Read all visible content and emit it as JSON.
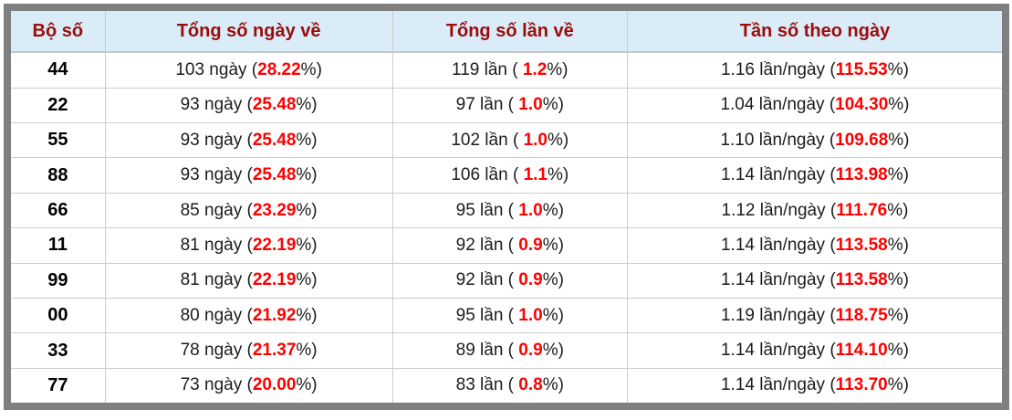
{
  "colors": {
    "frame_gray": "#7f7f7f",
    "header_background": "#d9ecf7",
    "header_text": "#9b0c0c",
    "percent_highlight": "#ff0000",
    "grid_line": "#cccccc",
    "body_text": "#1c1c1c"
  },
  "table": {
    "columns": [
      {
        "label": "Bộ số"
      },
      {
        "label": "Tổng số ngày về"
      },
      {
        "label": "Tổng số lần về"
      },
      {
        "label": "Tần số theo ngày"
      }
    ],
    "rows": [
      {
        "num": "44",
        "days": {
          "pre": "103 ngày (",
          "pct": "28.22",
          "post": "%)"
        },
        "times": {
          "pre": "119 lần ( ",
          "pct": "1.2",
          "post": "%)"
        },
        "freq": {
          "pre": "1.16 lần/ngày (",
          "pct": "115.53",
          "post": "%)"
        }
      },
      {
        "num": "22",
        "days": {
          "pre": "93 ngày (",
          "pct": "25.48",
          "post": "%)"
        },
        "times": {
          "pre": "97 lần ( ",
          "pct": "1.0",
          "post": "%)"
        },
        "freq": {
          "pre": "1.04 lần/ngày (",
          "pct": "104.30",
          "post": "%)"
        }
      },
      {
        "num": "55",
        "days": {
          "pre": "93 ngày (",
          "pct": "25.48",
          "post": "%)"
        },
        "times": {
          "pre": "102 lần ( ",
          "pct": "1.0",
          "post": "%)"
        },
        "freq": {
          "pre": "1.10 lần/ngày (",
          "pct": "109.68",
          "post": "%)"
        }
      },
      {
        "num": "88",
        "days": {
          "pre": "93 ngày (",
          "pct": "25.48",
          "post": "%)"
        },
        "times": {
          "pre": "106 lần ( ",
          "pct": "1.1",
          "post": "%)"
        },
        "freq": {
          "pre": "1.14 lần/ngày (",
          "pct": "113.98",
          "post": "%)"
        }
      },
      {
        "num": "66",
        "days": {
          "pre": "85 ngày (",
          "pct": "23.29",
          "post": "%)"
        },
        "times": {
          "pre": "95 lần ( ",
          "pct": "1.0",
          "post": "%)"
        },
        "freq": {
          "pre": "1.12 lần/ngày (",
          "pct": "111.76",
          "post": "%)"
        }
      },
      {
        "num": "11",
        "days": {
          "pre": "81 ngày (",
          "pct": "22.19",
          "post": "%)"
        },
        "times": {
          "pre": "92 lần ( ",
          "pct": "0.9",
          "post": "%)"
        },
        "freq": {
          "pre": "1.14 lần/ngày (",
          "pct": "113.58",
          "post": "%)"
        }
      },
      {
        "num": "99",
        "days": {
          "pre": "81 ngày (",
          "pct": "22.19",
          "post": "%)"
        },
        "times": {
          "pre": "92 lần ( ",
          "pct": "0.9",
          "post": "%)"
        },
        "freq": {
          "pre": "1.14 lần/ngày (",
          "pct": "113.58",
          "post": "%)"
        }
      },
      {
        "num": "00",
        "days": {
          "pre": "80 ngày (",
          "pct": "21.92",
          "post": "%)"
        },
        "times": {
          "pre": "95 lần ( ",
          "pct": "1.0",
          "post": "%)"
        },
        "freq": {
          "pre": "1.19 lần/ngày (",
          "pct": "118.75",
          "post": "%)"
        }
      },
      {
        "num": "33",
        "days": {
          "pre": "78 ngày (",
          "pct": "21.37",
          "post": "%)"
        },
        "times": {
          "pre": "89 lần ( ",
          "pct": "0.9",
          "post": "%)"
        },
        "freq": {
          "pre": "1.14 lần/ngày (",
          "pct": "114.10",
          "post": "%)"
        }
      },
      {
        "num": "77",
        "days": {
          "pre": "73 ngày (",
          "pct": "20.00",
          "post": "%)"
        },
        "times": {
          "pre": "83 lần ( ",
          "pct": "0.8",
          "post": "%)"
        },
        "freq": {
          "pre": "1.14 lần/ngày (",
          "pct": "113.70",
          "post": "%)"
        }
      }
    ]
  }
}
